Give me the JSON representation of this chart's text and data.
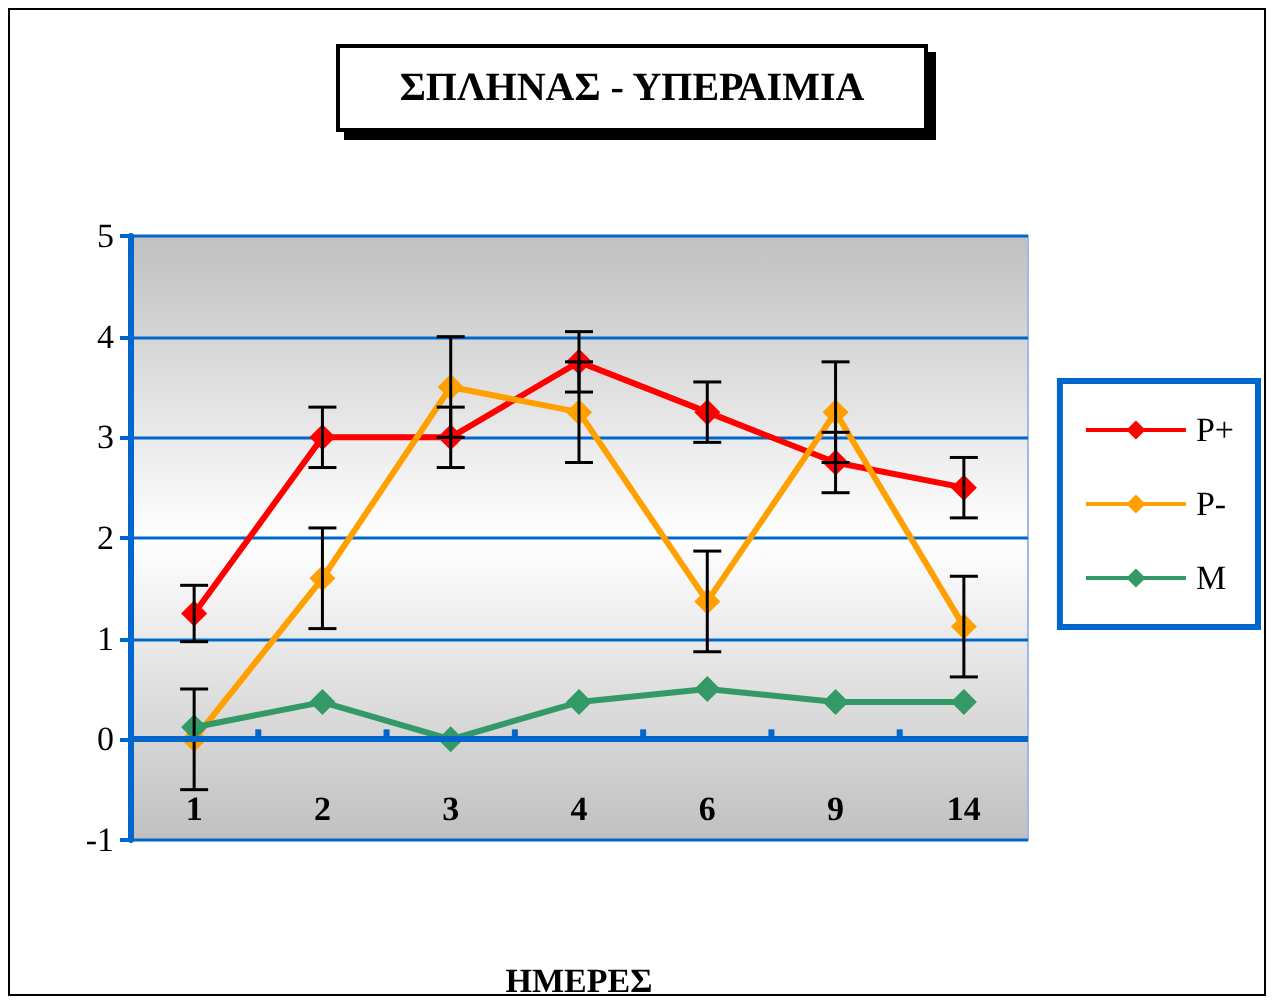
{
  "chart_data": {
    "type": "line",
    "title": "ΣΠΛΗΝΑΣ - ΥΠΕΡΑΙΜΙΑ",
    "xlabel": "ΗΜΕΡΕΣ",
    "categories": [
      "1",
      "2",
      "3",
      "4",
      "6",
      "9",
      "14"
    ],
    "series": [
      {
        "name": "P+",
        "color": "#ff0000",
        "values": [
          1.25,
          3.0,
          3.0,
          3.75,
          3.25,
          2.75,
          2.5
        ],
        "errors": [
          0.28,
          0.3,
          0.3,
          0.3,
          0.3,
          0.3,
          0.3
        ]
      },
      {
        "name": "P-",
        "color": "#ffa000",
        "values": [
          0,
          1.6,
          3.5,
          3.25,
          1.37,
          3.25,
          1.12
        ],
        "errors": [
          0.5,
          0.5,
          0.5,
          0.5,
          0.5,
          0.5,
          0.5
        ]
      },
      {
        "name": "M",
        "color": "#339966",
        "values": [
          0.12,
          0.37,
          0,
          0.37,
          0.5,
          0.37,
          0.37
        ]
      }
    ],
    "ref_lines": [
      {
        "axis": "y",
        "value": 0,
        "color": "#0066cc",
        "line_style": "solid"
      }
    ],
    "ylim": [
      -1,
      5
    ],
    "yticks": [
      -1,
      0,
      1,
      2,
      3,
      4,
      5
    ],
    "grid": "y",
    "legend": "right",
    "marker": "diamond",
    "line_style": "solid"
  }
}
